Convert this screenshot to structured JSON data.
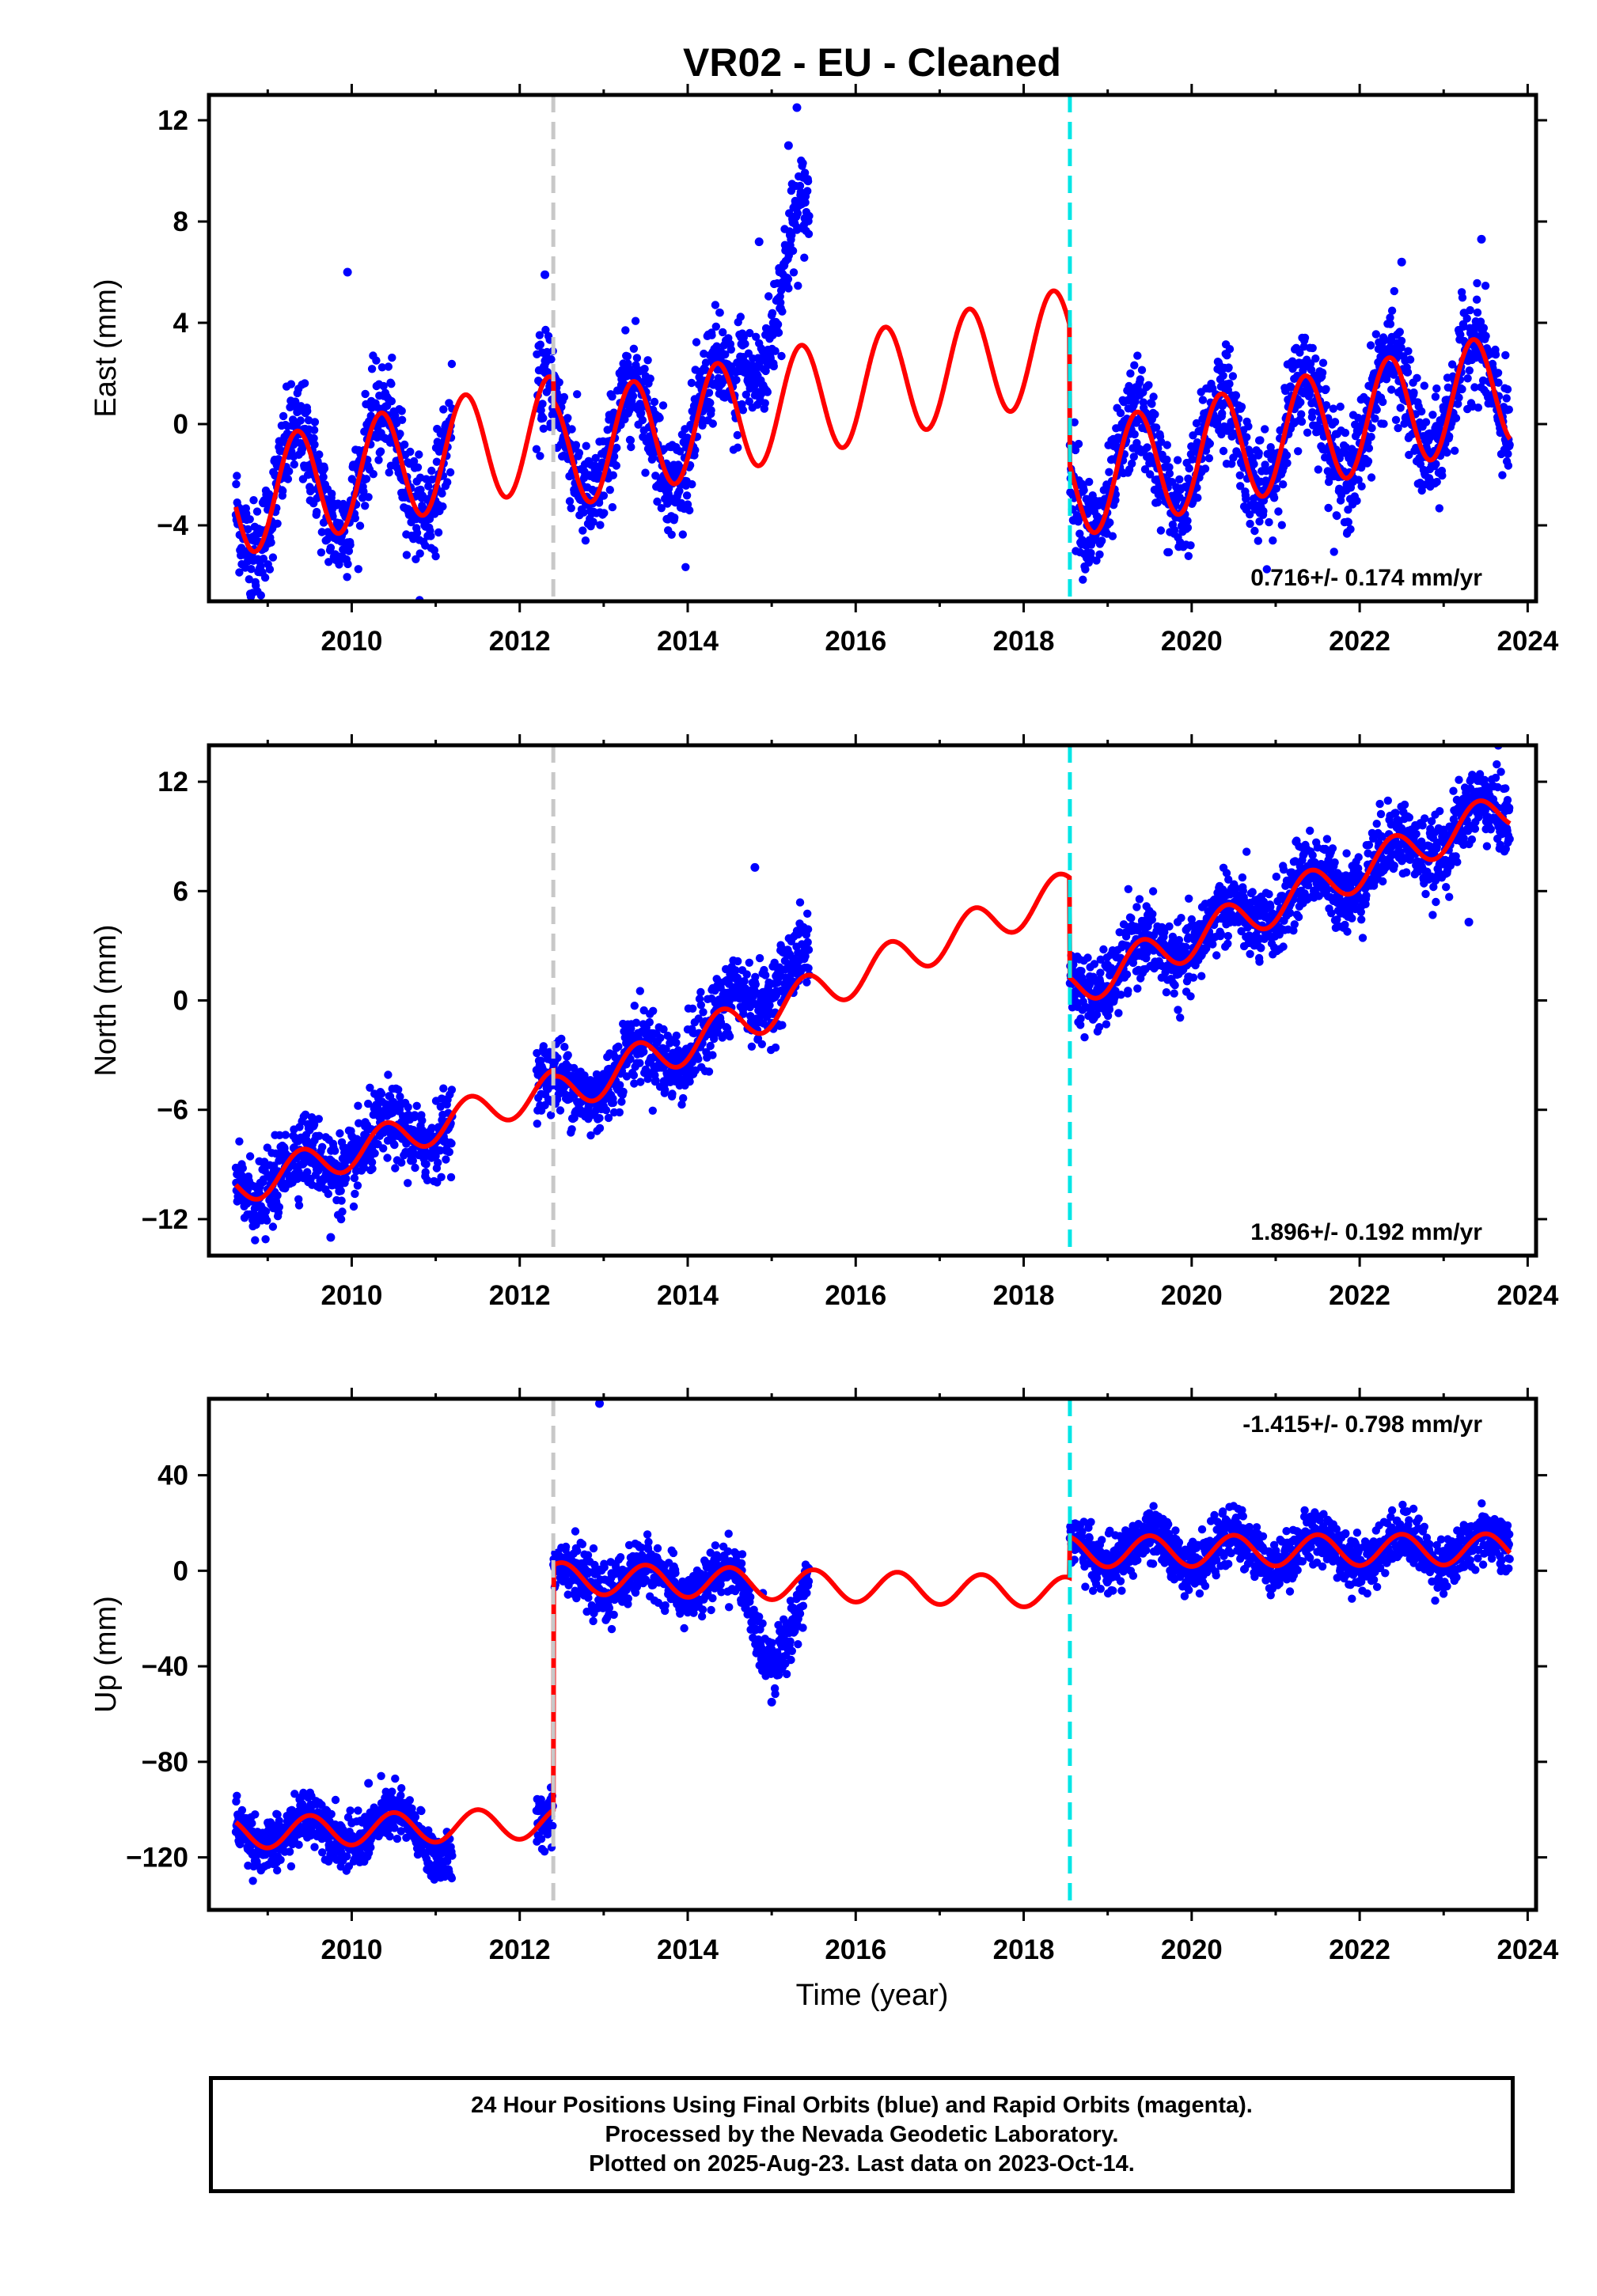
{
  "title": "VR02  - EU - Cleaned",
  "xlabel": "Time (year)",
  "footer": {
    "lines": [
      "24 Hour Positions Using Final Orbits (blue) and Rapid Orbits (magenta).",
      "Processed by the Nevada Geodetic Laboratory.",
      "Plotted on 2025-Aug-23. Last data on 2023-Oct-14."
    ]
  },
  "colors": {
    "data": "#0000ff",
    "model": "#ff0000",
    "break_equipment": "#c8c8c8",
    "break_other": "#00e6e6"
  },
  "chart_data": [
    {
      "type": "scatter",
      "panel": "east",
      "ylabel": "East (mm)",
      "xlim": [
        2008.3,
        2024.1
      ],
      "ylim": [
        -7,
        13
      ],
      "xticks": [
        2010,
        2012,
        2014,
        2016,
        2018,
        2020,
        2022,
        2024
      ],
      "yticks": [
        -4,
        0,
        4,
        8,
        12
      ],
      "rate_label": "0.716+/- 0.174 mm/yr",
      "rate_label_position": "bottom-right",
      "breaks": [
        {
          "x": 2012.4,
          "style": "gray-dashed"
        },
        {
          "x": 2018.55,
          "style": "cyan-dashed"
        }
      ],
      "data_segments": [
        [
          2008.62,
          2011.2
        ],
        [
          2012.2,
          2015.45
        ],
        [
          2018.55,
          2023.79
        ]
      ],
      "model": {
        "segments": [
          {
            "x": [
              2008.62,
              2012.4
            ],
            "y0": -2.5,
            "rate": 0.716,
            "amp": 2.2,
            "step_at_2012.4": 0
          },
          {
            "x": [
              2012.4,
              2018.55
            ],
            "y0": 0.0,
            "rate": 0.716,
            "amp": 2.3
          },
          {
            "x": [
              2018.55,
              2023.79
            ],
            "y0": -2.5,
            "rate": 0.716,
            "amp": 2.3
          }
        ]
      },
      "outliers": [
        [
          2009.95,
          6.0
        ],
        [
          2012.3,
          5.9
        ],
        [
          2015.3,
          12.5
        ],
        [
          2015.2,
          11.0
        ],
        [
          2014.85,
          7.2
        ],
        [
          2023.45,
          7.3
        ],
        [
          2022.5,
          6.4
        ]
      ]
    },
    {
      "type": "scatter",
      "panel": "north",
      "ylabel": "North (mm)",
      "xlim": [
        2008.3,
        2024.1
      ],
      "ylim": [
        -14,
        14
      ],
      "xticks": [
        2010,
        2012,
        2014,
        2016,
        2018,
        2020,
        2022,
        2024
      ],
      "yticks": [
        -12,
        -6,
        0,
        6,
        12
      ],
      "rate_label": "1.896+/- 0.192 mm/yr",
      "rate_label_position": "bottom-right",
      "breaks": [
        {
          "x": 2012.4,
          "style": "gray-dashed"
        },
        {
          "x": 2018.55,
          "style": "cyan-dashed"
        }
      ],
      "data_segments": [
        [
          2008.62,
          2011.2
        ],
        [
          2012.2,
          2015.45
        ],
        [
          2018.55,
          2023.79
        ]
      ],
      "outliers": [
        [
          2009.75,
          -13.0
        ],
        [
          2014.8,
          7.3
        ],
        [
          2023.3,
          4.3
        ],
        [
          2023.65,
          14.0
        ]
      ]
    },
    {
      "type": "scatter",
      "panel": "up",
      "ylabel": "Up (mm)",
      "xlim": [
        2008.3,
        2024.1
      ],
      "ylim": [
        -142,
        72
      ],
      "xticks": [
        2010,
        2012,
        2014,
        2016,
        2018,
        2020,
        2022,
        2024
      ],
      "yticks": [
        -120,
        -80,
        -40,
        0,
        40
      ],
      "rate_label": "-1.415+/- 0.798 mm/yr",
      "rate_label_position": "top-right",
      "breaks": [
        {
          "x": 2012.4,
          "style": "gray-dashed"
        },
        {
          "x": 2018.55,
          "style": "cyan-dashed"
        }
      ],
      "data_segments": [
        [
          2008.62,
          2011.2
        ],
        [
          2012.2,
          2015.45
        ],
        [
          2018.55,
          2023.79
        ]
      ],
      "outliers": [
        [
          2012.95,
          70.0
        ],
        [
          2010.2,
          -89.0
        ],
        [
          2015.0,
          -55.0
        ]
      ]
    }
  ]
}
